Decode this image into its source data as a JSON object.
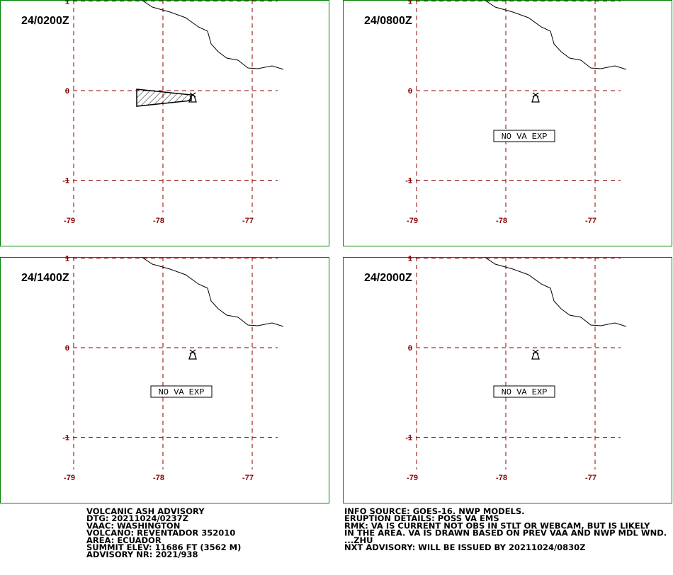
{
  "map": {
    "lon_ticks": [
      -79,
      -78,
      -77
    ],
    "lat_ticks": [
      1,
      0,
      -1
    ]
  },
  "panels": [
    {
      "time": "24/0200Z"
    },
    {
      "time": "24/0800Z",
      "label": "NO VA EXP"
    },
    {
      "time": "24/1400Z",
      "label": "NO VA EXP"
    },
    {
      "time": "24/2000Z",
      "label": "NO VA EXP"
    }
  ],
  "advisory": {
    "left": [
      "VOLCANIC ASH ADVISORY",
      "DTG: 20211024/0237Z",
      "VAAC: WASHINGTON",
      "VOLCANO: REVENTADOR 352010",
      "AREA: ECUADOR",
      "SUMMIT ELEV: 11686 FT (3562 M)",
      "ADVISORY NR: 2021/938"
    ],
    "right": [
      "INFO SOURCE: GOES-16. NWP MODELS.",
      "ERUPTION DETAILS: POSS VA EMS",
      "RMK: VA IS CURRENT NOT OBS IN STLT OR WEBCAM, BUT IS LIKELY",
      "IN THE AREA. VA IS DRAWN BASED ON PREV VAA AND NWP MDL WND.",
      "...ZHU",
      "NXT ADVISORY: WILL BE ISSUED BY 20211024/0830Z"
    ]
  }
}
